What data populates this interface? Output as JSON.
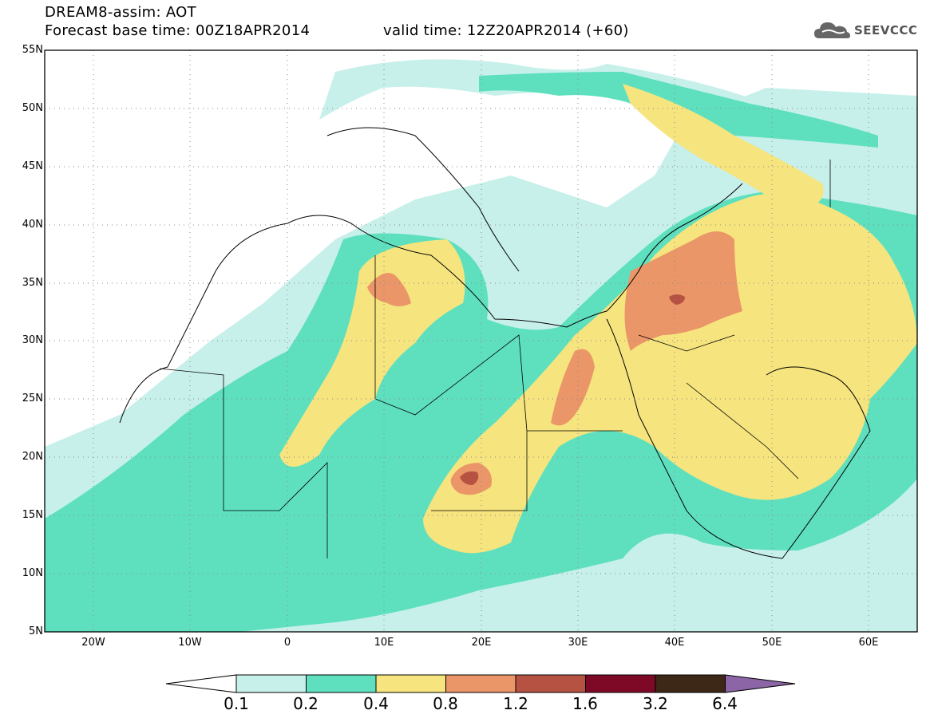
{
  "header": {
    "title_line1": "DREAM8-assim: AOT",
    "title_line2": "Forecast base time: 00Z18APR2014",
    "valid_time": "valid time: 12Z20APR2014 (+60)",
    "logo_text": "SEEVCCC"
  },
  "map": {
    "lat_labels": [
      "55N",
      "50N",
      "45N",
      "40N",
      "35N",
      "30N",
      "25N",
      "20N",
      "15N",
      "10N",
      "5N"
    ],
    "lon_labels": [
      "20W",
      "10W",
      "0",
      "10E",
      "20E",
      "30E",
      "40E",
      "50E",
      "60E"
    ],
    "lat_range": [
      5,
      55
    ],
    "lon_range": [
      -25,
      65
    ],
    "grid": "dotted"
  },
  "colorbar": {
    "labels": [
      "0.1",
      "0.2",
      "0.4",
      "0.8",
      "1.2",
      "1.6",
      "3.2",
      "6.4"
    ],
    "colors": [
      "#ffffff",
      "#c7f0ea",
      "#5ee0bf",
      "#f6e47e",
      "#eb9668",
      "#b55242",
      "#7d0927",
      "#3d2716",
      "#8b65a5"
    ]
  }
}
